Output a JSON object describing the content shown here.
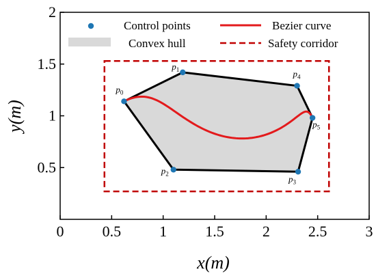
{
  "chart_data": {
    "type": "line",
    "xlabel": "x(m)",
    "ylabel": "y(m)",
    "xlim": [
      0,
      3
    ],
    "ylim": [
      0,
      2
    ],
    "xticks": [
      0,
      0.5,
      1,
      1.5,
      2,
      2.5,
      3
    ],
    "xtick_labels": [
      "0",
      "0.5",
      "1",
      "1.5",
      "2",
      "2.5",
      "3"
    ],
    "yticks": [
      0.5,
      1,
      1.5,
      2
    ],
    "ytick_labels": [
      "0.5",
      "1",
      "1.5",
      "2"
    ],
    "grid": false,
    "legend": {
      "position": "top",
      "entries": [
        {
          "label": "Control points",
          "style": "marker"
        },
        {
          "label": "Bezier curve",
          "style": "line"
        },
        {
          "label": "Convex hull",
          "style": "patch"
        },
        {
          "label": "Safety corridor",
          "style": "dashed"
        }
      ]
    },
    "colors": {
      "control_points": "#1f77b4",
      "bezier": "#e31a1c",
      "hull_fill": "#d9d9d9",
      "hull_edge": "#000000",
      "corridor": "#c00000"
    },
    "control_points": [
      {
        "label": "p",
        "sub": "0",
        "x": 0.62,
        "y": 1.14
      },
      {
        "label": "p",
        "sub": "1",
        "x": 1.19,
        "y": 1.42
      },
      {
        "label": "p",
        "sub": "2",
        "x": 1.1,
        "y": 0.48
      },
      {
        "label": "p",
        "sub": "3",
        "x": 2.31,
        "y": 0.46
      },
      {
        "label": "p",
        "sub": "4",
        "x": 2.3,
        "y": 1.29
      },
      {
        "label": "p",
        "sub": "5",
        "x": 2.45,
        "y": 0.98
      }
    ],
    "convex_hull_order": [
      0,
      1,
      4,
      5,
      3,
      2
    ],
    "safety_corridor": {
      "x": [
        0.43,
        2.61
      ],
      "y": [
        0.27,
        1.53
      ]
    }
  }
}
